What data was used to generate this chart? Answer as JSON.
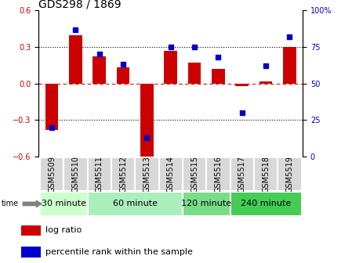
{
  "title": "GDS298 / 1869",
  "samples": [
    "GSM5509",
    "GSM5510",
    "GSM5511",
    "GSM5512",
    "GSM5513",
    "GSM5514",
    "GSM5515",
    "GSM5516",
    "GSM5517",
    "GSM5518",
    "GSM5519"
  ],
  "log_ratio": [
    -0.38,
    0.4,
    0.22,
    0.13,
    -0.62,
    0.27,
    0.17,
    0.12,
    -0.02,
    0.02,
    0.3
  ],
  "percentile": [
    20,
    87,
    70,
    63,
    13,
    75,
    75,
    68,
    30,
    62,
    82
  ],
  "groups": [
    {
      "label": "30 minute",
      "start": 0,
      "end": 2,
      "color": "#ccffcc"
    },
    {
      "label": "60 minute",
      "start": 2,
      "end": 6,
      "color": "#aaeebb"
    },
    {
      "label": "120 minute",
      "start": 6,
      "end": 8,
      "color": "#77dd88"
    },
    {
      "label": "240 minute",
      "start": 8,
      "end": 11,
      "color": "#44cc55"
    }
  ],
  "bar_color": "#cc0000",
  "dot_color": "#0000cc",
  "ylim_left": [
    -0.6,
    0.6
  ],
  "ylim_right": [
    0,
    100
  ],
  "yticks_left": [
    -0.6,
    -0.3,
    0.0,
    0.3,
    0.6
  ],
  "yticks_right": [
    0,
    25,
    50,
    75,
    100
  ],
  "background_color": "#ffffff",
  "title_fontsize": 10,
  "tick_fontsize": 7,
  "label_fontsize": 7,
  "group_fontsize": 8
}
